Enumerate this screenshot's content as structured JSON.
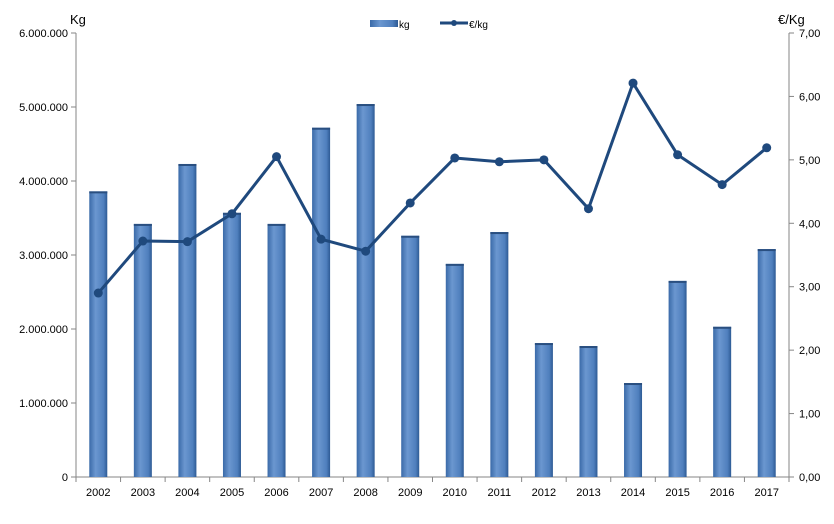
{
  "chart_data": {
    "type": "bar+line",
    "categories": [
      "2002",
      "2003",
      "2004",
      "2005",
      "2006",
      "2007",
      "2008",
      "2009",
      "2010",
      "2011",
      "2012",
      "2013",
      "2014",
      "2015",
      "2016",
      "2017"
    ],
    "series": [
      {
        "name": "kg",
        "type": "bar",
        "axis": "left",
        "color": "#4f81bd",
        "values": [
          3860000,
          3420000,
          4230000,
          3570000,
          3420000,
          4720000,
          5040000,
          3260000,
          2880000,
          3310000,
          1810000,
          1770000,
          1270000,
          2650000,
          2030000,
          3080000
        ]
      },
      {
        "name": "€/kg",
        "type": "line",
        "axis": "right",
        "color": "#1f497d",
        "values": [
          2.9,
          3.72,
          3.71,
          4.15,
          5.05,
          3.75,
          3.56,
          4.32,
          5.03,
          4.97,
          5.0,
          4.23,
          6.21,
          5.08,
          4.61,
          5.19
        ]
      }
    ],
    "ylabel": "Kg",
    "y2label": "€/Kg",
    "ylim": [
      0,
      6000000
    ],
    "y2lim": [
      0,
      7
    ],
    "yticks": [
      "0",
      "1.000.000",
      "2.000.000",
      "3.000.000",
      "4.000.000",
      "5.000.000",
      "6.000.000"
    ],
    "y2ticks": [
      "0,00",
      "1,00",
      "2,00",
      "3,00",
      "4,00",
      "5,00",
      "6,00",
      "7,00"
    ],
    "legend_position": "top-center",
    "grid": false
  }
}
